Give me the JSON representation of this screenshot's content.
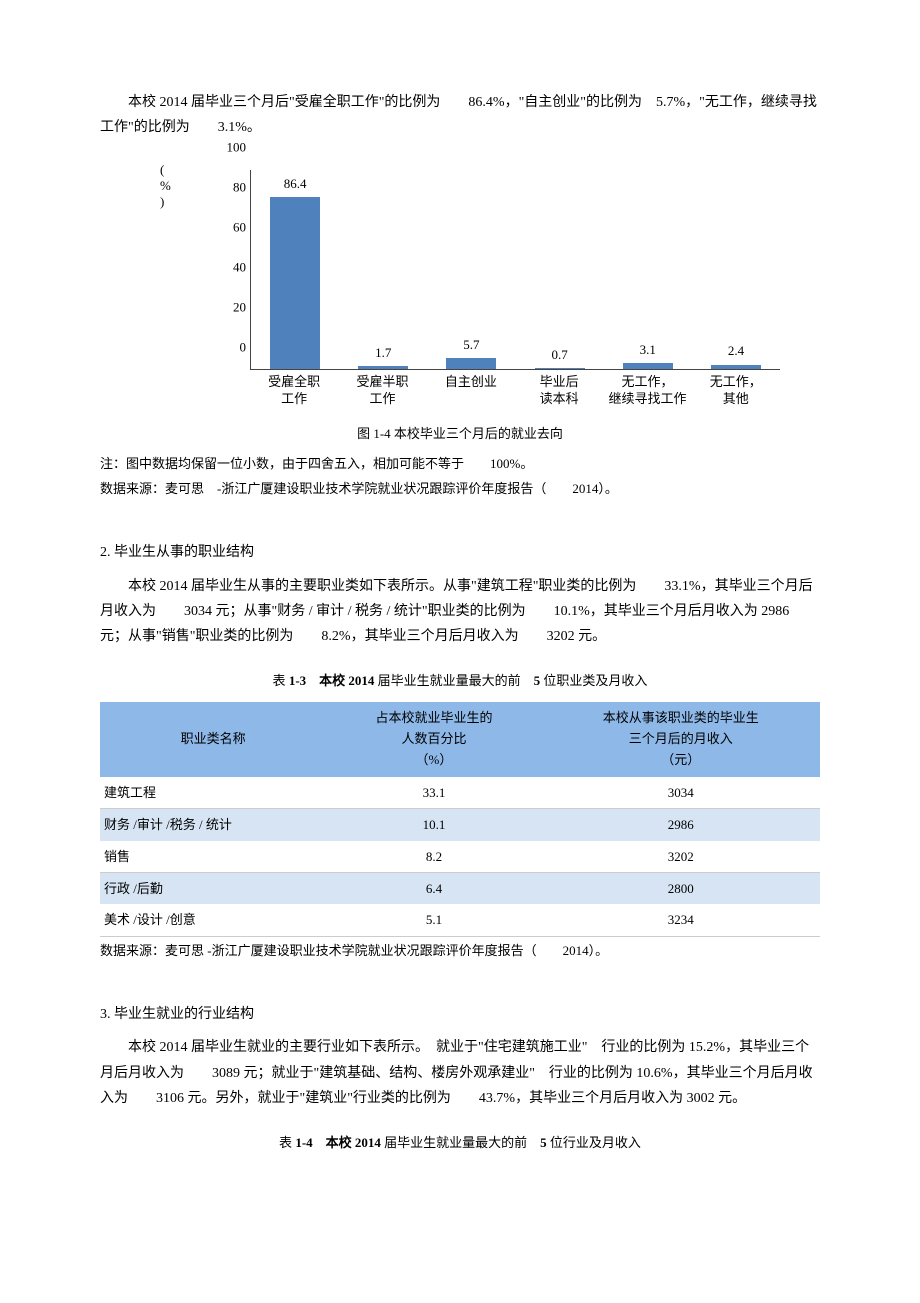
{
  "intro_para": "本校 2014 届毕业三个月后\"受雇全职工作\"的比例为　　86.4%，\"自主创业\"的比例为　5.7%，\"无工作，继续寻找工作\"的比例为　　3.1%。",
  "chart": {
    "type": "bar",
    "y_unit": "(\n%\n)",
    "y_max": 100,
    "y_ticks": [
      0,
      20,
      40,
      60,
      80,
      100
    ],
    "bar_color": "#4f81bd",
    "bars": [
      {
        "label": "受雇全职\n工作",
        "value": 86.4
      },
      {
        "label": "受雇半职\n工作",
        "value": 1.7
      },
      {
        "label": "自主创业",
        "value": 5.7
      },
      {
        "label": "毕业后\n读本科",
        "value": 0.7
      },
      {
        "label": "无工作，\n继续寻找工作",
        "value": 3.1
      },
      {
        "label": "无工作，\n其他",
        "value": 2.4
      }
    ],
    "caption": "图 1-4 本校毕业三个月后的就业去向",
    "note1": "注：图中数据均保留一位小数，由于四舍五入，相加可能不等于　　100%。",
    "note2": "数据来源：麦可思　-浙江广厦建设职业技术学院就业状况跟踪评价年度报告（　　2014）。"
  },
  "section2": {
    "heading": "2. 毕业生从事的职业结构",
    "para": "本校 2014 届毕业生从事的主要职业类如下表所示。从事\"建筑工程\"职业类的比例为　　33.1%，其毕业三个月后月收入为　　3034 元；从事\"财务 / 审计 / 税务 / 统计\"职业类的比例为　　10.1%，其毕业三个月后月收入为 2986 元；从事\"销售\"职业类的比例为　　8.2%，其毕业三个月后月收入为　　3202 元。",
    "table_title_pre": "表 ",
    "table_title_bold": "1-3　本校 2014 ",
    "table_title_mid": "届毕业生就业量最大的前　",
    "table_title_bold2": "5 ",
    "table_title_post": "位职业类及月收入",
    "headers": [
      "职业类名称",
      "占本校就业毕业生的\n人数百分比\n（%）",
      "本校从事该职业类的毕业生\n三个月后的月收入\n（元）"
    ],
    "header_bg": "#8db8e8",
    "alt_bg": "#d6e4f4",
    "rows": [
      {
        "c1": "建筑工程",
        "c2": "33.1",
        "c3": "3034",
        "alt": false
      },
      {
        "c1": "财务 /审计 /税务 / 统计",
        "c2": "10.1",
        "c3": "2986",
        "alt": true
      },
      {
        "c1": "销售",
        "c2": "8.2",
        "c3": "3202",
        "alt": false
      },
      {
        "c1": "行政 /后勤",
        "c2": "6.4",
        "c3": "2800",
        "alt": true
      },
      {
        "c1": "美术 /设计 /创意",
        "c2": "5.1",
        "c3": "3234",
        "alt": false
      }
    ],
    "source": "数据来源：麦可思 -浙江广厦建设职业技术学院就业状况跟踪评价年度报告（　　2014）。"
  },
  "section3": {
    "heading": "3. 毕业生就业的行业结构",
    "para": "本校 2014 届毕业生就业的主要行业如下表所示。　就业于\"住宅建筑施工业\"　行业的比例为 15.2%，其毕业三个月后月收入为　　3089 元；就业于\"建筑基础、结构、楼房外观承建业\"　行业的比例为 10.6%，其毕业三个月后月收入为　　3106 元。另外，就业于\"建筑业\"行业类的比例为　　43.7%，其毕业三个月后月收入为 3002 元。",
    "table_title_pre": "表 ",
    "table_title_bold": "1-4　本校 2014 ",
    "table_title_mid": "届毕业生就业量最大的前　",
    "table_title_bold2": "5 ",
    "table_title_post": "位行业及月收入"
  }
}
